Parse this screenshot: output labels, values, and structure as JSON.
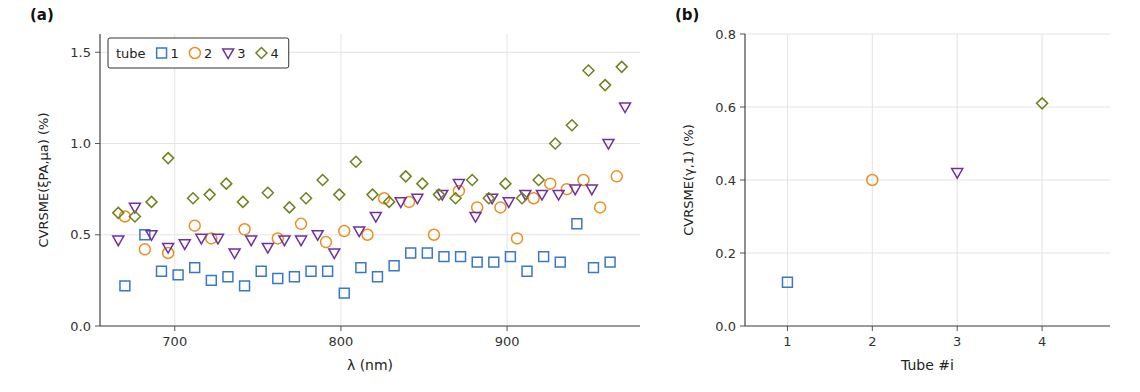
{
  "chart_data": [
    {
      "type": "scatter",
      "title": "(a)",
      "x_label": "λ (nm)",
      "y_label": "CVRSME(ξPA,μa) (%)",
      "legend_title": "tube",
      "legend": "upper left",
      "grid": true,
      "xlim": [
        655,
        980
      ],
      "ylim": [
        0,
        1.6
      ],
      "xticks": [
        700,
        800,
        900
      ],
      "yticks": [
        {
          "value": 0,
          "label": "0.0"
        },
        0.5,
        {
          "value": 1.0,
          "label": "1.0"
        },
        1.5
      ],
      "series": [
        {
          "name": "1",
          "color": "#3878c8",
          "marker": "square",
          "x": [
            670,
            682,
            692,
            702,
            712,
            722,
            732,
            742,
            752,
            762,
            772,
            782,
            792,
            802,
            812,
            822,
            832,
            842,
            852,
            862,
            872,
            882,
            892,
            902,
            912,
            922,
            932,
            942,
            952,
            962
          ],
          "values": [
            0.22,
            0.5,
            0.3,
            0.28,
            0.32,
            0.25,
            0.27,
            0.22,
            0.3,
            0.26,
            0.27,
            0.3,
            0.3,
            0.18,
            0.32,
            0.27,
            0.33,
            0.4,
            0.4,
            0.38,
            0.38,
            0.35,
            0.35,
            0.38,
            0.3,
            0.38,
            0.35,
            0.56,
            0.32,
            0.35
          ]
        },
        {
          "name": "2",
          "color": "#e89020",
          "marker": "circle",
          "x": [
            670,
            682,
            696,
            712,
            722,
            742,
            762,
            776,
            791,
            802,
            816,
            826,
            841,
            856,
            871,
            882,
            896,
            906,
            916,
            926,
            936,
            946,
            956,
            966
          ],
          "values": [
            0.6,
            0.42,
            0.4,
            0.55,
            0.48,
            0.53,
            0.48,
            0.56,
            0.46,
            0.52,
            0.5,
            0.7,
            0.68,
            0.5,
            0.74,
            0.65,
            0.65,
            0.48,
            0.7,
            0.78,
            0.75,
            0.8,
            0.65,
            0.82
          ]
        },
        {
          "name": "3",
          "color": "#7030a0",
          "marker": "triangle-down",
          "x": [
            666,
            676,
            686,
            696,
            706,
            716,
            726,
            736,
            746,
            756,
            766,
            776,
            786,
            796,
            811,
            821,
            836,
            846,
            861,
            871,
            881,
            891,
            901,
            911,
            921,
            931,
            941,
            951,
            961,
            971
          ],
          "values": [
            0.47,
            0.65,
            0.5,
            0.43,
            0.45,
            0.48,
            0.48,
            0.4,
            0.47,
            0.43,
            0.47,
            0.47,
            0.5,
            0.4,
            0.52,
            0.6,
            0.68,
            0.7,
            0.72,
            0.78,
            0.6,
            0.7,
            0.68,
            0.72,
            0.72,
            0.72,
            0.75,
            0.75,
            1.0,
            1.2
          ]
        },
        {
          "name": "4",
          "color": "#708020",
          "marker": "diamond",
          "x": [
            666,
            676,
            686,
            696,
            711,
            721,
            731,
            741,
            756,
            769,
            779,
            789,
            799,
            809,
            819,
            829,
            839,
            849,
            859,
            869,
            879,
            889,
            899,
            909,
            919,
            929,
            939,
            949,
            959,
            969
          ],
          "values": [
            0.62,
            0.6,
            0.68,
            0.92,
            0.7,
            0.72,
            0.78,
            0.68,
            0.73,
            0.65,
            0.7,
            0.8,
            0.72,
            0.9,
            0.72,
            0.68,
            0.82,
            0.78,
            0.72,
            0.7,
            0.8,
            0.7,
            0.78,
            0.7,
            0.8,
            1.0,
            1.1,
            1.4,
            1.32,
            1.42
          ]
        }
      ]
    },
    {
      "type": "scatter",
      "title": "(b)",
      "x_label": "Tube #i",
      "y_label": "CVRSME(γ,1) (%)",
      "grid": true,
      "xlim": [
        0.5,
        4.8
      ],
      "ylim": [
        0,
        0.8
      ],
      "xticks": [
        1,
        2,
        3,
        4
      ],
      "yticks": [
        {
          "value": 0,
          "label": "0.0"
        },
        0.2,
        0.4,
        0.6,
        0.8
      ],
      "series": [
        {
          "color": "#3878c8",
          "marker": "square",
          "x": [
            1
          ],
          "values": [
            0.12
          ]
        },
        {
          "color": "#e89020",
          "marker": "circle",
          "x": [
            2
          ],
          "values": [
            0.4
          ]
        },
        {
          "color": "#7030a0",
          "marker": "triangle-down",
          "x": [
            3
          ],
          "values": [
            0.42
          ]
        },
        {
          "color": "#708020",
          "marker": "diamond",
          "x": [
            4
          ],
          "values": [
            0.61
          ]
        }
      ]
    }
  ]
}
